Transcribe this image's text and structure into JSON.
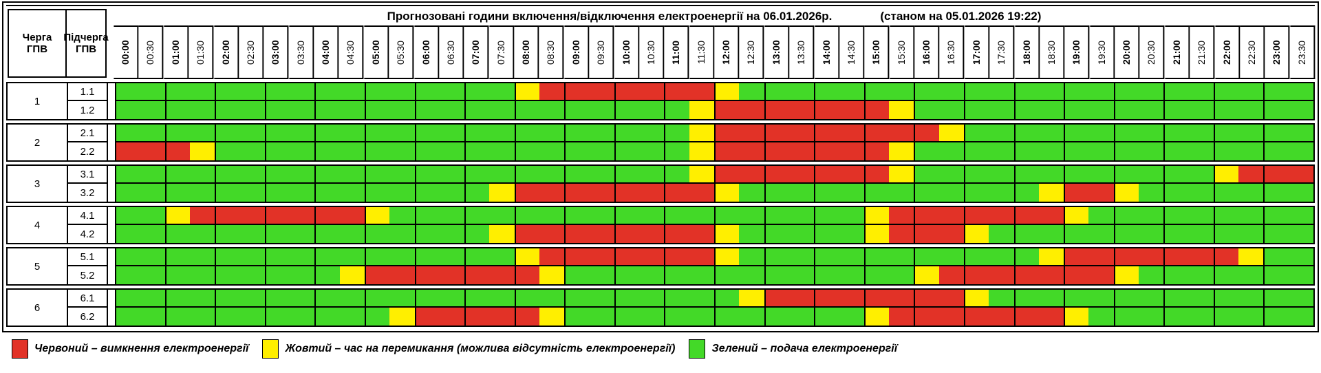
{
  "header": {
    "title": "Прогнозовані години включення/відключення електроенергії на 06.01.2026р.",
    "as_of": "(станом на 05.01.2026 19:22)",
    "queue_col": "Черга\nГПВ",
    "subqueue_col": "Підчерга\nГПВ",
    "times": [
      "00:00",
      "00:30",
      "01:00",
      "01:30",
      "02:00",
      "02:30",
      "03:00",
      "03:30",
      "04:00",
      "04:30",
      "05:00",
      "05:30",
      "06:00",
      "06:30",
      "07:00",
      "07:30",
      "08:00",
      "08:30",
      "09:00",
      "09:30",
      "10:00",
      "10:30",
      "11:00",
      "11:30",
      "12:00",
      "12:30",
      "13:00",
      "13:30",
      "14:00",
      "14:30",
      "15:00",
      "15:30",
      "16:00",
      "16:30",
      "17:00",
      "17:30",
      "18:00",
      "18:30",
      "19:00",
      "19:30",
      "20:00",
      "20:30",
      "21:00",
      "21:30",
      "22:00",
      "22:30",
      "23:00",
      "23:30"
    ]
  },
  "colors": {
    "green": "#43d928",
    "yellow": "#ffef00",
    "red": "#e23227",
    "border": "#000000"
  },
  "cell_meaning": {
    "G": "подача електроенергії",
    "Y": "час на перемикання",
    "R": "вимкнення електроенергії"
  },
  "schedule": {
    "queues": [
      {
        "queue": "1",
        "sub": [
          {
            "label": "1.1",
            "cells": "GGGGGGGGGGGGGGGGYRRRRRRRYGGGGGGGGGGGGGGGGGGGGGGG"
          },
          {
            "label": "1.2",
            "cells": "GGGGGGGGGGGGGGGGGGGGGGGYRRRRRRRYGGGGGGGGGGGGGGGG"
          }
        ]
      },
      {
        "queue": "2",
        "sub": [
          {
            "label": "2.1",
            "cells": "GGGGGGGGGGGGGGGGGGGGGGGYRRRRRRRRRYGGGGGGGGGGGGGG"
          },
          {
            "label": "2.2",
            "cells": "RRRYGGGGGGGGGGGGGGGGGGGYRRRRRRRYGGGGGGGGGGGGGGGG"
          }
        ]
      },
      {
        "queue": "3",
        "sub": [
          {
            "label": "3.1",
            "cells": "GGGGGGGGGGGGGGGGGGGGGGGYRRRRRRRYGGGGGGGGGGGGYRRR"
          },
          {
            "label": "3.2",
            "cells": "GGGGGGGGGGGGGGGYRRRRRRRRYGGGGGGGGGGGGYRRYGGGGGGG"
          }
        ]
      },
      {
        "queue": "4",
        "sub": [
          {
            "label": "4.1",
            "cells": "GGYRRRRRRRYGGGGGGGGGGGGGGGGGGGYRRRRRRRYGGGGGGGGG"
          },
          {
            "label": "4.2",
            "cells": "GGGGGGGGGGGGGGGYRRRRRRRRYGGGGGYRRRYGGGGGGGGGGGGG"
          }
        ]
      },
      {
        "queue": "5",
        "sub": [
          {
            "label": "5.1",
            "cells": "GGGGGGGGGGGGGGGGYRRRRRRRYGGGGGGGGGGGGYRRRRRRRYGG"
          },
          {
            "label": "5.2",
            "cells": "GGGGGGGGGYRRRRRRRYGGGGGGGGGGGGGGYRRRRRRRYGGGGGGG"
          }
        ]
      },
      {
        "queue": "6",
        "sub": [
          {
            "label": "6.1",
            "cells": "GGGGGGGGGGGGGGGGGGGGGGGGGYRRRRRRRRYGGGGGGGGGGGGG"
          },
          {
            "label": "6.2",
            "cells": "GGGGGGGGGGGYRRRRRYGGGGGGGGGGGGYRRRRRRRYGGGGGGGGG"
          }
        ]
      }
    ]
  },
  "legend": [
    {
      "color_key": "red",
      "label": "Червоний – вимкнення електроенергії"
    },
    {
      "color_key": "yellow",
      "label": "Жовтий – час на перемикання (можлива відсутність електроенергії)"
    },
    {
      "color_key": "green",
      "label": "Зелений – подача електроенергії"
    }
  ]
}
